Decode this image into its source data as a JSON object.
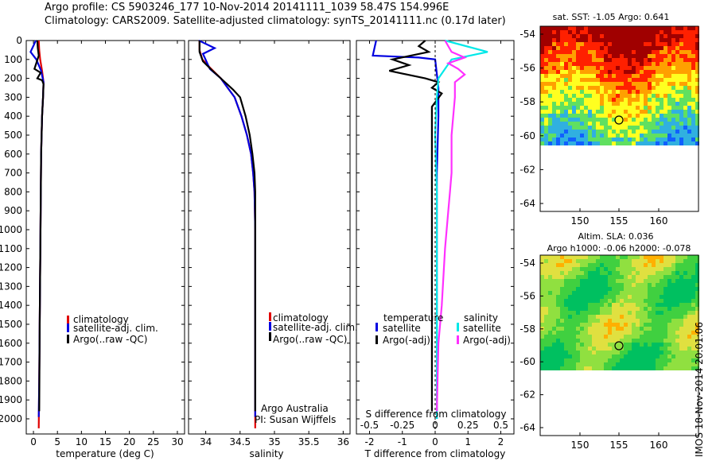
{
  "header": {
    "line1": "Argo profile: CS 5903246_177 10-Nov-2014 20141111_1039 58.47S 154.996E",
    "line2": "Climatology: CARS2009. Satellite-adjusted climatology: synTS_20141111.nc (0.17d later)"
  },
  "colors": {
    "climatology": "#e00000",
    "satellite": "#0000e0",
    "argo": "#000000",
    "sal_satellite": "#00e8e8",
    "sal_argo": "#ff30ff"
  },
  "chart_data": [
    {
      "type": "line",
      "id": "temperature",
      "xlabel": "temperature (deg C)",
      "ylabel": "",
      "xlim": [
        -1.5,
        31.5
      ],
      "ylim": [
        2080,
        0
      ],
      "xticks": [
        0,
        5,
        10,
        15,
        20,
        25,
        30
      ],
      "yticks": [
        0,
        100,
        200,
        300,
        400,
        500,
        600,
        700,
        800,
        900,
        1000,
        1100,
        1200,
        1300,
        1400,
        1500,
        1600,
        1700,
        1800,
        1900,
        2000
      ],
      "legend_position": "center",
      "legend": [
        "climatology",
        "satellite-adj. clim.",
        "Argo(..raw -QC)"
      ],
      "series": [
        {
          "name": "climatology",
          "color": "#e00000",
          "x": [
            1.1,
            1.2,
            1.4,
            1.8,
            2.1,
            2.0,
            1.8,
            1.6,
            1.5,
            1.4,
            1.3,
            1.2,
            1.1
          ],
          "y": [
            0,
            50,
            100,
            160,
            220,
            300,
            400,
            600,
            900,
            1200,
            1500,
            1800,
            2050
          ]
        },
        {
          "name": "satellite-adj. clim.",
          "color": "#0000e0",
          "x": [
            0.5,
            -0.6,
            0.6,
            1.6,
            2.1,
            2.0,
            1.8,
            1.6,
            1.5,
            1.4,
            1.3,
            1.2,
            1.1
          ],
          "y": [
            0,
            60,
            100,
            160,
            220,
            300,
            400,
            600,
            900,
            1200,
            1500,
            1800,
            1990
          ]
        },
        {
          "name": "Argo(..raw -QC)",
          "color": "#000000",
          "x": [
            0.8,
            0.9,
            1.1,
            0.2,
            1.5,
            0.8,
            1.8,
            2.1,
            2.0,
            1.8,
            1.6,
            1.5,
            1.4,
            1.3,
            1.2
          ],
          "y": [
            0,
            40,
            80,
            150,
            170,
            200,
            210,
            230,
            300,
            400,
            600,
            900,
            1200,
            1500,
            1960
          ]
        }
      ],
      "annotations": []
    },
    {
      "type": "line",
      "id": "salinity",
      "xlabel": "salinity",
      "ylabel": "",
      "xlim": [
        33.75,
        36.1
      ],
      "ylim": [
        2080,
        0
      ],
      "xticks": [
        34,
        34.5,
        35,
        35.5,
        36
      ],
      "xticklabels": [
        "34",
        "34.5",
        "35",
        "35.5",
        "36"
      ],
      "legend_position": "center",
      "legend": [
        "climatology",
        "satellite-adj. clim.",
        "Argo(..raw -QC)"
      ],
      "series": [
        {
          "name": "climatology",
          "color": "#e00000",
          "x": [
            33.91,
            33.91,
            33.95,
            34.08,
            34.22,
            34.32,
            34.42,
            34.52,
            34.6,
            34.66,
            34.69,
            34.71,
            34.72,
            34.72,
            34.72,
            34.72
          ],
          "y": [
            0,
            50,
            100,
            150,
            200,
            250,
            300,
            400,
            500,
            600,
            700,
            800,
            1000,
            1400,
            1800,
            2050
          ]
        },
        {
          "name": "satellite-adj. clim.",
          "color": "#0000e0",
          "x": [
            33.9,
            34.13,
            33.96,
            34.06,
            34.22,
            34.32,
            34.42,
            34.52,
            34.6,
            34.66,
            34.69,
            34.71,
            34.72,
            34.72,
            34.72
          ],
          "y": [
            0,
            40,
            70,
            150,
            200,
            250,
            300,
            400,
            500,
            600,
            700,
            800,
            1000,
            1400,
            1990
          ]
        },
        {
          "name": "Argo(..raw -QC)",
          "color": "#000000",
          "x": [
            33.91,
            33.91,
            33.96,
            34.1,
            34.25,
            34.4,
            34.5,
            34.58,
            34.64,
            34.68,
            34.71,
            34.72,
            34.72,
            34.72,
            34.72,
            34.72
          ],
          "y": [
            0,
            60,
            110,
            160,
            210,
            260,
            300,
            400,
            500,
            600,
            700,
            800,
            1000,
            1400,
            1800,
            1960
          ]
        }
      ],
      "annotations": [
        "Argo Australia",
        "PI: Susan Wijffels"
      ]
    },
    {
      "type": "line",
      "id": "difference",
      "xlabel": "T difference from climatology",
      "ylabel": "",
      "top_axis_label": "S difference from climatology",
      "xlim": [
        -2.4,
        2.4
      ],
      "ylim": [
        2080,
        0
      ],
      "xticks": [
        -2,
        -1,
        0,
        1,
        2
      ],
      "top_ticks": [
        -0.5,
        -0.25,
        0,
        0.25,
        0.5
      ],
      "top_ticklabels": [
        "-0.5",
        "-0.25",
        "0",
        "0.25",
        "0.5"
      ],
      "legend_position": "center",
      "legend_groups": [
        {
          "title": "temperature",
          "items": [
            "satellite",
            "Argo(-adj)"
          ]
        },
        {
          "title": "salinity",
          "items": [
            "satellite",
            "Argo(-adj)"
          ]
        }
      ],
      "series": [
        {
          "name": "satellite",
          "group": "temperature",
          "color": "#0000e0",
          "x": [
            -1.8,
            -1.9,
            -0.5,
            0,
            0.1,
            0.1,
            0.05,
            0.05,
            0.05,
            0.05,
            0.05,
            0.05
          ],
          "y": [
            0,
            80,
            90,
            100,
            250,
            400,
            700,
            1000,
            1300,
            1600,
            1900,
            2000
          ]
        },
        {
          "name": "Argo(-adj)",
          "group": "temperature",
          "color": "#000000",
          "x": [
            -0.3,
            -0.5,
            -0.2,
            -1.3,
            -0.8,
            -1.4,
            -0.3,
            0.1,
            -0.1,
            0.2,
            -0.1,
            -0.1,
            -0.1,
            -0.1,
            -0.1,
            -0.1,
            -0.1
          ],
          "y": [
            0,
            30,
            60,
            100,
            130,
            160,
            200,
            220,
            250,
            280,
            350,
            500,
            800,
            1100,
            1400,
            1700,
            1960
          ]
        },
        {
          "name": "satellite",
          "group": "salinity",
          "color": "#00e8e8",
          "x": [
            0.3,
            1.6,
            0.5,
            0.1,
            0.05,
            0.0,
            0.05,
            0.05,
            0.05,
            0.05,
            0.05,
            0.05
          ],
          "y": [
            0,
            60,
            100,
            200,
            300,
            500,
            800,
            1100,
            1400,
            1600,
            1900,
            2000
          ]
        },
        {
          "name": "Argo(-adj)",
          "group": "salinity",
          "color": "#ff30ff",
          "x": [
            0.3,
            0.5,
            0.9,
            0.4,
            0.7,
            0.9,
            0.6,
            0.6,
            0.5,
            0.5,
            0.45,
            0.4,
            0.3,
            0.2,
            0.1,
            0.05
          ],
          "y": [
            0,
            60,
            90,
            120,
            150,
            180,
            220,
            300,
            500,
            700,
            800,
            900,
            1100,
            1400,
            1600,
            1960
          ]
        },
        {
          "name": "climatology",
          "color": "#000000",
          "dashed": true,
          "x": [
            0,
            0
          ],
          "y": [
            0,
            2080
          ]
        }
      ]
    }
  ],
  "maps": [
    {
      "id": "sst",
      "title": "sat. SST: -1.05 Argo: 0.641",
      "lon_ticks": [
        "150",
        "155",
        "160"
      ],
      "lat_ticks": [
        "-54",
        "-56",
        "-58",
        "-60",
        "-62",
        "-64"
      ],
      "colors": [
        "#a00000",
        "#ff2000",
        "#ffa000",
        "#ffff20",
        "#60e060",
        "#30b0e0",
        "#1060ff"
      ]
    },
    {
      "id": "sla",
      "title_line1": "Altim. SLA: 0.036",
      "title_line2": "Argo h1000: -0.06 h2000: -0.078",
      "lon_ticks": [
        "150",
        "155",
        "160"
      ],
      "lat_ticks": [
        "-54",
        "-56",
        "-58",
        "-60",
        "-62",
        "-64"
      ],
      "colors": [
        "#00c060",
        "#40d040",
        "#90e040",
        "#e0e040",
        "#ffb000",
        "#ff5000",
        "#40b0ff"
      ]
    }
  ],
  "sidebar_text": "IMOS 18-Nov-2014 20:01:06"
}
